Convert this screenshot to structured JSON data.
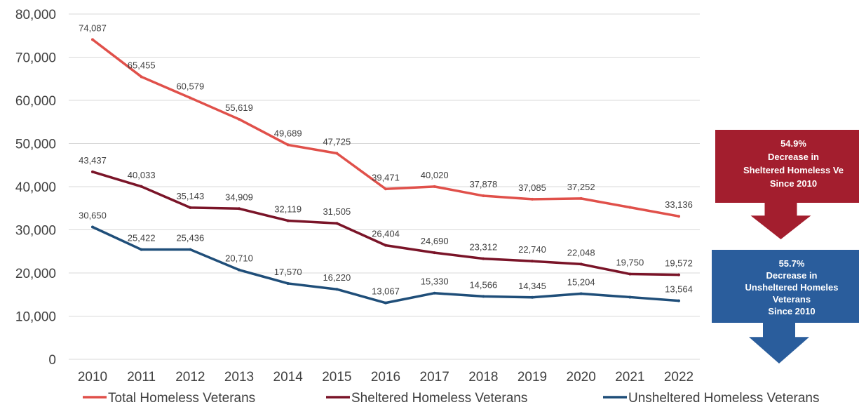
{
  "chart_data": {
    "type": "line",
    "title": "",
    "xlabel": "",
    "ylabel": "",
    "ylim": [
      0,
      80000
    ],
    "yticks": [
      "0",
      "10,000",
      "20,000",
      "30,000",
      "40,000",
      "50,000",
      "60,000",
      "70,000",
      "80,000"
    ],
    "grid": true,
    "legend_position": "bottom",
    "categories": [
      "2010",
      "2011",
      "2012",
      "2013",
      "2014",
      "2015",
      "2016",
      "2017",
      "2018",
      "2019",
      "2020",
      "2021",
      "2022"
    ],
    "series": [
      {
        "name": "Total Homeless Veterans",
        "color": "#e0504a",
        "values": [
          74087,
          65455,
          60579,
          55619,
          49689,
          47725,
          39471,
          40020,
          37878,
          37085,
          37252,
          35200,
          33136
        ],
        "labels": [
          "74,087",
          "65,455",
          "60,579",
          "55,619",
          "49,689",
          "47,725",
          "39,471",
          "40,020",
          "37,878",
          "37,085",
          "37,252",
          "",
          "33,136"
        ]
      },
      {
        "name": "Sheltered Homeless Veterans",
        "color": "#7a1428",
        "values": [
          43437,
          40033,
          35143,
          34909,
          32119,
          31505,
          26404,
          24690,
          23312,
          22740,
          22048,
          19750,
          19572
        ],
        "labels": [
          "43,437",
          "40,033",
          "35,143",
          "34,909",
          "32,119",
          "31,505",
          "26,404",
          "24,690",
          "23,312",
          "22,740",
          "22,048",
          "19,750",
          "19,572"
        ]
      },
      {
        "name": "Unsheltered Homeless Veterans",
        "color": "#1f4e79",
        "values": [
          30650,
          25422,
          25436,
          20710,
          17570,
          16220,
          13067,
          15330,
          14566,
          14345,
          15204,
          14400,
          13564
        ],
        "labels": [
          "30,650",
          "25,422",
          "25,436",
          "20,710",
          "17,570",
          "16,220",
          "13,067",
          "15,330",
          "14,566",
          "14,345",
          "15,204",
          "",
          "13,564"
        ]
      }
    ],
    "callouts": [
      {
        "name": "sheltered",
        "color": "#a31e2e",
        "lines": [
          "54.9%",
          "Decrease in",
          "Sheltered Homeless Ve",
          "Since 2010"
        ]
      },
      {
        "name": "unsheltered",
        "color": "#2a5d9c",
        "lines": [
          "55.7%",
          "Decrease in",
          "Unsheltered Homeles",
          "Veterans",
          "Since 2010"
        ]
      }
    ]
  }
}
